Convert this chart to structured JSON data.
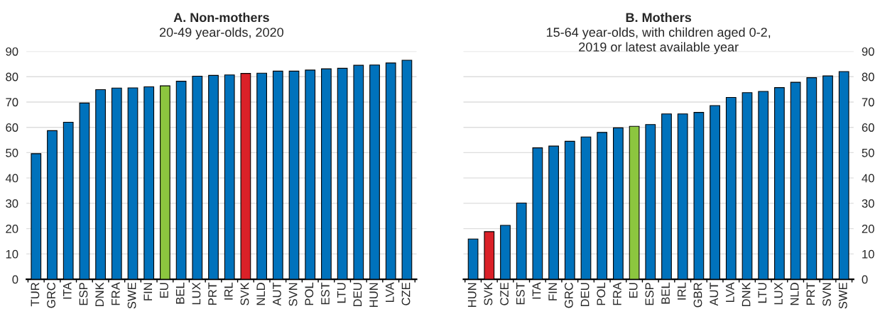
{
  "chart_data": [
    {
      "type": "bar",
      "title": "A. Non-mothers",
      "subtitle": "20-49 year-olds, 2020",
      "categories": [
        "TUR",
        "GRC",
        "ITA",
        "ESP",
        "DNK",
        "FRA",
        "SWE",
        "FIN",
        "EU",
        "BEL",
        "LUX",
        "PRT",
        "IRL",
        "SVK",
        "NLD",
        "AUT",
        "SVN",
        "POL",
        "EST",
        "LTU",
        "DEU",
        "HUN",
        "LVA",
        "CZE"
      ],
      "values": [
        49.6,
        58.7,
        62.0,
        69.6,
        74.9,
        75.5,
        75.6,
        76.0,
        76.4,
        78.2,
        80.2,
        80.5,
        80.7,
        81.3,
        81.4,
        82.2,
        82.2,
        82.6,
        83.1,
        83.3,
        84.5,
        84.6,
        85.4,
        86.5
      ],
      "colors": [
        "#0072bc",
        "#0072bc",
        "#0072bc",
        "#0072bc",
        "#0072bc",
        "#0072bc",
        "#0072bc",
        "#0072bc",
        "#8cc63f",
        "#0072bc",
        "#0072bc",
        "#0072bc",
        "#0072bc",
        "#da2128",
        "#0072bc",
        "#0072bc",
        "#0072bc",
        "#0072bc",
        "#0072bc",
        "#0072bc",
        "#0072bc",
        "#0072bc",
        "#0072bc",
        "#0072bc"
      ],
      "ylim": [
        0,
        90
      ],
      "yticks": [
        0,
        10,
        20,
        30,
        40,
        50,
        60,
        70,
        80,
        90
      ],
      "grid": "y"
    },
    {
      "type": "bar",
      "title": "B. Mothers",
      "subtitle": "15-64 year-olds, with children aged 0-2,\n2019 or latest available year",
      "categories": [
        "HUN",
        "SVK",
        "CZE",
        "EST",
        "ITA",
        "FIN",
        "GRC",
        "DEU",
        "POL",
        "FRA",
        "EU",
        "ESP",
        "BEL",
        "IRL",
        "GBR",
        "AUT",
        "LVA",
        "DNK",
        "LTU",
        "LUX",
        "NLD",
        "PRT",
        "SVN",
        "SWE"
      ],
      "values": [
        15.9,
        18.8,
        21.3,
        30.1,
        51.9,
        52.6,
        54.5,
        56.2,
        58.0,
        59.8,
        60.4,
        61.1,
        65.3,
        65.3,
        65.9,
        68.6,
        71.8,
        73.7,
        74.2,
        75.7,
        77.8,
        79.6,
        80.3,
        82.0
      ],
      "colors": [
        "#0072bc",
        "#da2128",
        "#0072bc",
        "#0072bc",
        "#0072bc",
        "#0072bc",
        "#0072bc",
        "#0072bc",
        "#0072bc",
        "#0072bc",
        "#8cc63f",
        "#0072bc",
        "#0072bc",
        "#0072bc",
        "#0072bc",
        "#0072bc",
        "#0072bc",
        "#0072bc",
        "#0072bc",
        "#0072bc",
        "#0072bc",
        "#0072bc",
        "#0072bc",
        "#0072bc"
      ],
      "ylim": [
        0,
        90
      ],
      "yticks": [
        0,
        10,
        20,
        30,
        40,
        50,
        60,
        70,
        80,
        90
      ],
      "grid": "y"
    }
  ]
}
